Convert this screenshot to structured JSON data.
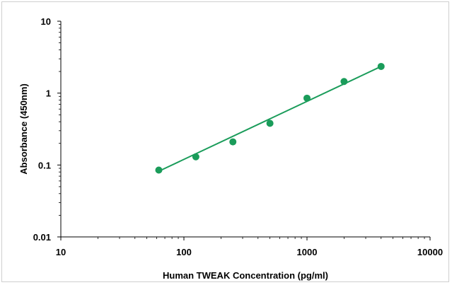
{
  "chart_data": {
    "type": "scatter",
    "xlabel": "Human TWEAK Concentration (pg/ml)",
    "ylabel": "Absorbance (450nm)",
    "x_scale": "log",
    "y_scale": "log",
    "xlim": [
      10,
      10000
    ],
    "ylim": [
      0.01,
      10
    ],
    "x_ticks": [
      10,
      100,
      1000,
      10000
    ],
    "x_tick_labels": [
      "10",
      "100",
      "1000",
      "10000"
    ],
    "y_ticks": [
      0.01,
      0.1,
      1,
      10
    ],
    "y_tick_labels": [
      "0.01",
      "0.1",
      "1",
      "10"
    ],
    "grid": false,
    "legend": "none",
    "marker_color": "#1a9c5a",
    "line_color": "#1a9c5a",
    "series": [
      {
        "x": [
          62.5,
          125,
          250,
          500,
          1000,
          2000,
          4000
        ],
        "y": [
          0.085,
          0.13,
          0.21,
          0.38,
          0.85,
          1.45,
          2.35
        ]
      }
    ],
    "fit_line": {
      "x": [
        62.5,
        4000
      ],
      "y": [
        0.082,
        2.35
      ]
    }
  }
}
